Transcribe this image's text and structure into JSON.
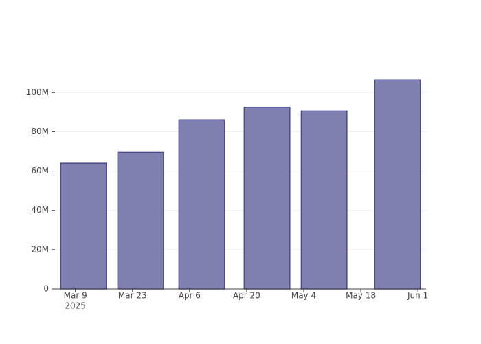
{
  "chart_data": {
    "type": "bar",
    "categories": [
      "2025-03-11",
      "2025-03-25",
      "2025-04-09",
      "2025-04-25",
      "2025-05-09",
      "2025-05-27"
    ],
    "values": [
      64000000,
      69500000,
      86000000,
      92500000,
      90500000,
      106300000
    ],
    "color": "#7f7fb0",
    "edge_color": "#4b4b8c",
    "xlim": [
      "2025-03-04",
      "2025-06-03"
    ],
    "xticks": [
      {
        "value": "2025-03-09",
        "label": "Mar 9"
      },
      {
        "value": "2025-03-23",
        "label": "Mar 23"
      },
      {
        "value": "2025-04-06",
        "label": "Apr 6"
      },
      {
        "value": "2025-04-20",
        "label": "Apr 20"
      },
      {
        "value": "2025-05-04",
        "label": "May 4"
      },
      {
        "value": "2025-05-18",
        "label": "May 18"
      },
      {
        "value": "2025-06-01",
        "label": "Jun 1"
      }
    ],
    "x_year_label": "2025",
    "ylim": [
      0,
      112000000
    ],
    "yticks": [
      0,
      {
        "value": 20000000,
        "label": "20M"
      },
      {
        "value": 40000000,
        "label": "40M"
      },
      {
        "value": 60000000,
        "label": "60M"
      },
      {
        "value": 80000000,
        "label": "80M"
      },
      {
        "value": 100000000,
        "label": "100M"
      }
    ],
    "grid": true,
    "bar_width_days": 11.2
  }
}
